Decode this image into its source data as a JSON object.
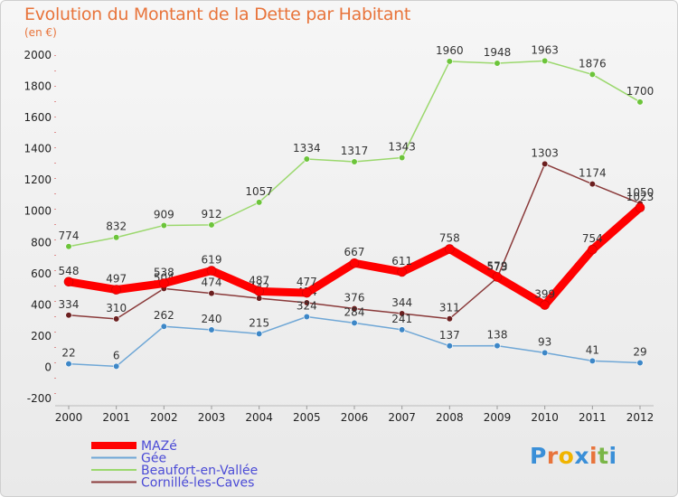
{
  "chart_data": {
    "type": "line",
    "title": "Evolution du Montant de la Dette par Habitant",
    "unit": "(en €)",
    "categories": [
      "2000",
      "2001",
      "2002",
      "2003",
      "2004",
      "2005",
      "2006",
      "2007",
      "2008",
      "2009",
      "2010",
      "2011",
      "2012"
    ],
    "ylim": [
      -200,
      2000
    ],
    "yticks": [
      -200,
      0,
      200,
      400,
      600,
      800,
      1000,
      1200,
      1400,
      1600,
      1800,
      2000
    ],
    "grid": false,
    "legend_position": "bottom-left",
    "series": [
      {
        "name": "Beaufort-en-Vallée",
        "color": "#9bd86d",
        "marker": "#6cc43a",
        "width": 1.5,
        "values": [
          774,
          832,
          909,
          912,
          1057,
          1334,
          1317,
          1343,
          1960,
          1948,
          1963,
          1876,
          1700
        ]
      },
      {
        "name": "Cornillé-les-Caves",
        "color": "#8a3a3a",
        "marker": "#6b1f1f",
        "width": 1.5,
        "values": [
          334,
          310,
          504,
          474,
          442,
          414,
          376,
          344,
          311,
          573,
          1303,
          1174,
          1050
        ]
      },
      {
        "name": "Gée",
        "color": "#6fa7d6",
        "marker": "#3d87c7",
        "width": 1.5,
        "values": [
          22,
          6,
          262,
          240,
          215,
          324,
          284,
          241,
          137,
          138,
          93,
          41,
          29
        ]
      },
      {
        "name": "MAZé",
        "color": "#ff0000",
        "marker": "#ff0000",
        "width": 9,
        "values": [
          548,
          497,
          538,
          619,
          487,
          477,
          667,
          611,
          758,
          579,
          399,
          754,
          1023
        ]
      }
    ],
    "legend_order": [
      "MAZé",
      "Gée",
      "Beaufort-en-Vallée",
      "Cornillé-les-Caves"
    ]
  },
  "logo": {
    "letters": [
      "P",
      "r",
      "o",
      "x",
      "i",
      "t",
      "i"
    ],
    "colors": [
      "#3a8fd8",
      "#e8743b",
      "#f0b400",
      "#3a8fd8",
      "#e8743b",
      "#7ab648",
      "#3a8fd8"
    ]
  }
}
